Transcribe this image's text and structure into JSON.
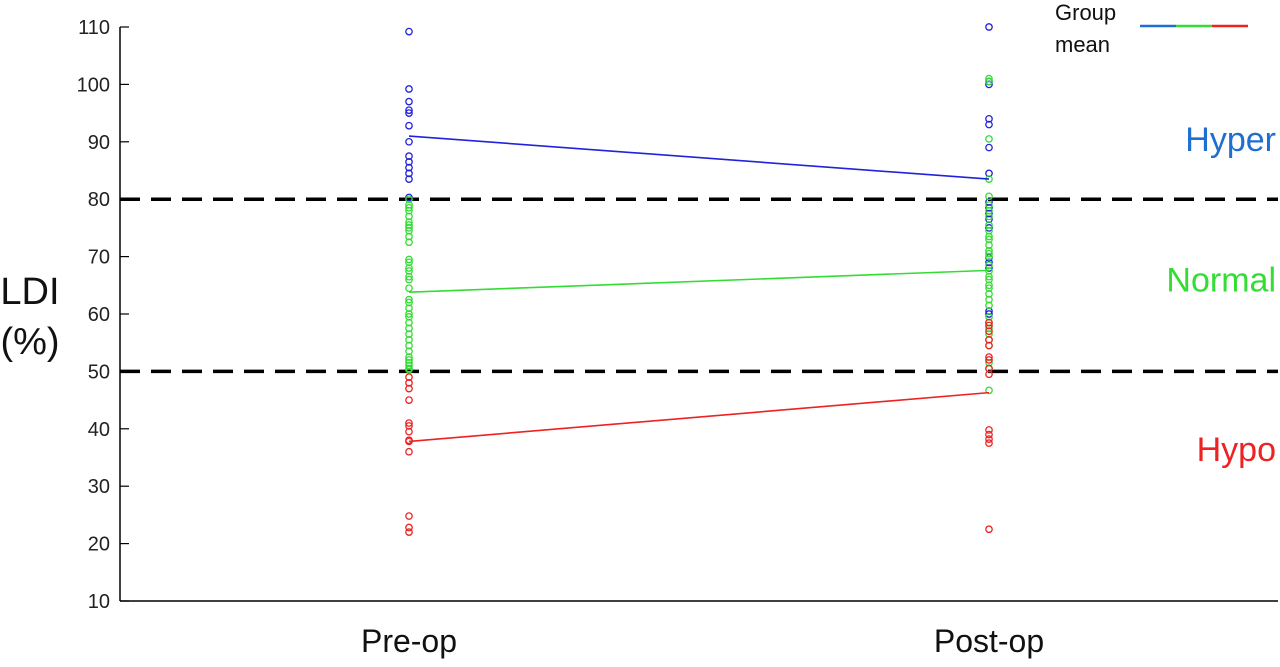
{
  "chart_data": {
    "type": "scatter",
    "ylabel": [
      "LDI",
      "(%)"
    ],
    "ylim": [
      10,
      110
    ],
    "yticks": [
      10,
      20,
      30,
      40,
      50,
      60,
      70,
      80,
      90,
      100,
      110
    ],
    "categories": [
      "Pre-op",
      "Post-op"
    ],
    "reference_lines": [
      50,
      80
    ],
    "region_labels": [
      {
        "text": "Hyper",
        "y": 90.5,
        "color": "#1f6fd1"
      },
      {
        "text": "Normal",
        "y": 66,
        "color": "#33dd33"
      },
      {
        "text": "Hypo",
        "y": 36.5,
        "color": "#ee2222"
      }
    ],
    "legend": {
      "label": [
        "Group",
        "mean"
      ],
      "colors": [
        "#1f6fd1",
        "#33dd33",
        "#ee2222"
      ],
      "placement": "top-right"
    },
    "series": [
      {
        "color": "#2222dd",
        "points": {
          "Pre-op": [
            109.2,
            99.2,
            97,
            95.5,
            95,
            92.8,
            90,
            87.5,
            86.5,
            85.5,
            84.5,
            83.5,
            80.3
          ],
          "Post-op": [
            110,
            100.5,
            100,
            94,
            93,
            89,
            84.5,
            79.5,
            78.5,
            77.5,
            76.5,
            75,
            69.8,
            69,
            68,
            60.5,
            60
          ]
        },
        "mean": {
          "Pre-op": 91,
          "Post-op": 83.5
        }
      },
      {
        "color": "#33dd33",
        "points": {
          "Pre-op": [
            80,
            79,
            78.5,
            78,
            77,
            76,
            75.5,
            75,
            74.5,
            73.5,
            72.5,
            69.5,
            69,
            68,
            67.5,
            66.5,
            66,
            64.5,
            62.5,
            62,
            61,
            60,
            59.5,
            58.5,
            57.5,
            56.5,
            55.5,
            54.5,
            53.5,
            52.5,
            52,
            51.5,
            51,
            50.5,
            50.3
          ],
          "Post-op": [
            101,
            100.5,
            90.5,
            83.5,
            80.5,
            79,
            78,
            77,
            75.5,
            74.5,
            73.5,
            73,
            72,
            71,
            70.5,
            70,
            68.5,
            67.5,
            66.5,
            66,
            65,
            64.5,
            63.5,
            62.5,
            61.5,
            59.5,
            58.5,
            57.5,
            56.5,
            55.5,
            54.5,
            51.5,
            50.5,
            46.7
          ]
        },
        "mean": {
          "Pre-op": 63.8,
          "Post-op": 67.6
        }
      },
      {
        "color": "#ee2222",
        "points": {
          "Pre-op": [
            49,
            48,
            47,
            45,
            41,
            40.5,
            39.5,
            38,
            37.8,
            36,
            24.8,
            22.8,
            22
          ],
          "Post-op": [
            58.5,
            58,
            57,
            55.5,
            54.5,
            52.5,
            52,
            50.5,
            49.5,
            39.8,
            39,
            38.2,
            37.5,
            22.5
          ]
        },
        "mean": {
          "Pre-op": 37.8,
          "Post-op": 46.3
        }
      }
    ]
  }
}
